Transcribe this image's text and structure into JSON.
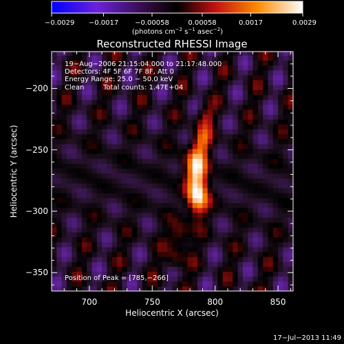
{
  "chart_data": {
    "type": "heatmap",
    "title": "Reconstructed RHESSI Image",
    "xlabel": "Heliocentric X (arcsec)",
    "ylabel": "Heliocentric Y (arcsec)",
    "xlim": [
      670,
      862
    ],
    "ylim": [
      -365,
      -170
    ],
    "x_ticks": [
      {
        "value": 700,
        "label": "700"
      },
      {
        "value": 750,
        "label": "750"
      },
      {
        "value": 800,
        "label": "800"
      },
      {
        "value": 850,
        "label": "850"
      }
    ],
    "y_ticks": [
      {
        "value": -200,
        "label": "−200"
      },
      {
        "value": -250,
        "label": "−250"
      },
      {
        "value": -300,
        "label": "−300"
      },
      {
        "value": -350,
        "label": "−350"
      }
    ],
    "colorbar": {
      "min": -0.0029,
      "max": 0.0029,
      "tick_labels": [
        "−0.0029",
        "−0.0017",
        "−0.00058",
        "0.00058",
        "0.0017",
        "0.0029"
      ],
      "tick_values": [
        -0.0029,
        -0.0017,
        -0.00058,
        0.00058,
        0.0017,
        0.0029
      ],
      "unit_text": "(photons cm",
      "unit_exp1": "−2",
      "unit_mid": " s",
      "unit_exp2": "−1",
      "unit_mid2": " asec",
      "unit_exp3": "−2",
      "unit_end": ")",
      "colors": [
        "#0000ff",
        "#7a2ad0",
        "#201020",
        "#000000",
        "#c01010",
        "#ff8000",
        "#ffffff"
      ]
    },
    "annotations": {
      "time_range": "19−Aug−2006 21:15:04.000 to 21:17:48.000",
      "detectors": "Detectors: 4F 5F 6F 7F 8F, Att 0",
      "energy": "Energy Range: 25.0 − 50.0 keV",
      "method": "Clean",
      "counts": "Total counts: 1.47E+04",
      "peak": "Position of Peak = [785,−266]"
    },
    "peak": {
      "x": 785,
      "y": -266
    },
    "timestamp": "17−Jul−2013 11:49"
  }
}
